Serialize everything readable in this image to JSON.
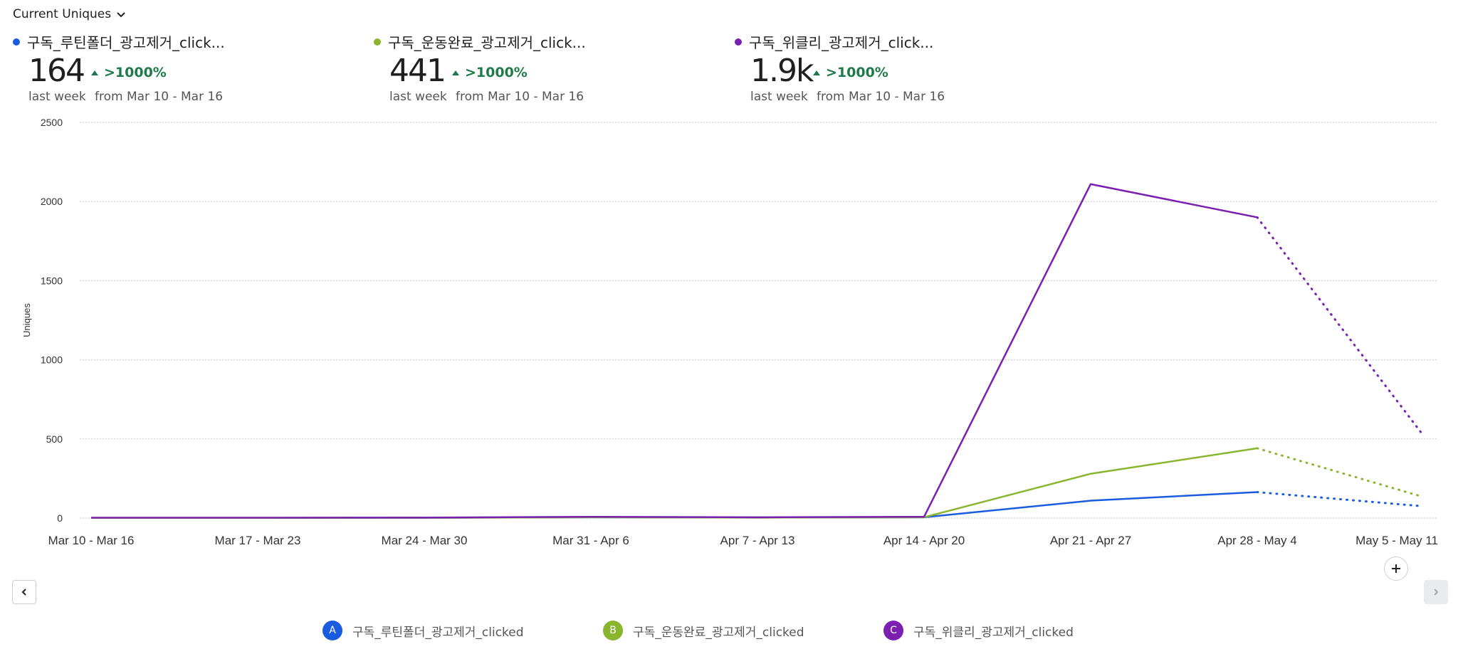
{
  "header": {
    "metric_label": "Current Uniques"
  },
  "stats": [
    {
      "name": "구독_루틴폴더_광고제거_click...",
      "value": "164",
      "period": "last week",
      "delta": ">1000%",
      "compare": "from Mar 10 - Mar 16",
      "color": "#1a5ce0"
    },
    {
      "name": "구독_운동완료_광고제거_click...",
      "value": "441",
      "period": "last week",
      "delta": ">1000%",
      "compare": "from Mar 10 - Mar 16",
      "color": "#8ab52e"
    },
    {
      "name": "구독_위클리_광고제거_click...",
      "value": "1.9k",
      "period": "last week",
      "delta": ">1000%",
      "compare": "from Mar 10 - Mar 16",
      "color": "#7a1fb0"
    }
  ],
  "chart_data": {
    "type": "line",
    "ylabel": "Uniques",
    "ylim": [
      0,
      2500
    ],
    "yticks": [
      "0",
      "500",
      "1000",
      "1500",
      "2000",
      "2500"
    ],
    "ytick_values": [
      0,
      500,
      1000,
      1500,
      2000,
      2500
    ],
    "categories": [
      "Mar 10 - Mar 16",
      "Mar 17 - Mar 23",
      "Mar 24 - Mar 30",
      "Mar 31 - Apr 6",
      "Apr 7 - Apr 13",
      "Apr 14 - Apr 20",
      "Apr 21 - Apr 27",
      "Apr 28 - May 4",
      "May 5 - May 11"
    ],
    "incomplete_from_index": 7,
    "grid": true,
    "series": [
      {
        "name": "구독_루틴폴더_광고제거_clicked",
        "letter": "A",
        "color": "#1a5ce0",
        "values": [
          1,
          1,
          2,
          5,
          3,
          5,
          110,
          164,
          75
        ]
      },
      {
        "name": "구독_운동완료_광고제거_clicked",
        "letter": "B",
        "color": "#8ab52e",
        "values": [
          1,
          1,
          2,
          5,
          3,
          5,
          280,
          441,
          135
        ]
      },
      {
        "name": "구독_위클리_광고제거_clicked",
        "letter": "C",
        "color": "#7a1fb0",
        "values": [
          2,
          2,
          3,
          8,
          5,
          8,
          2110,
          1900,
          530
        ]
      }
    ]
  }
}
